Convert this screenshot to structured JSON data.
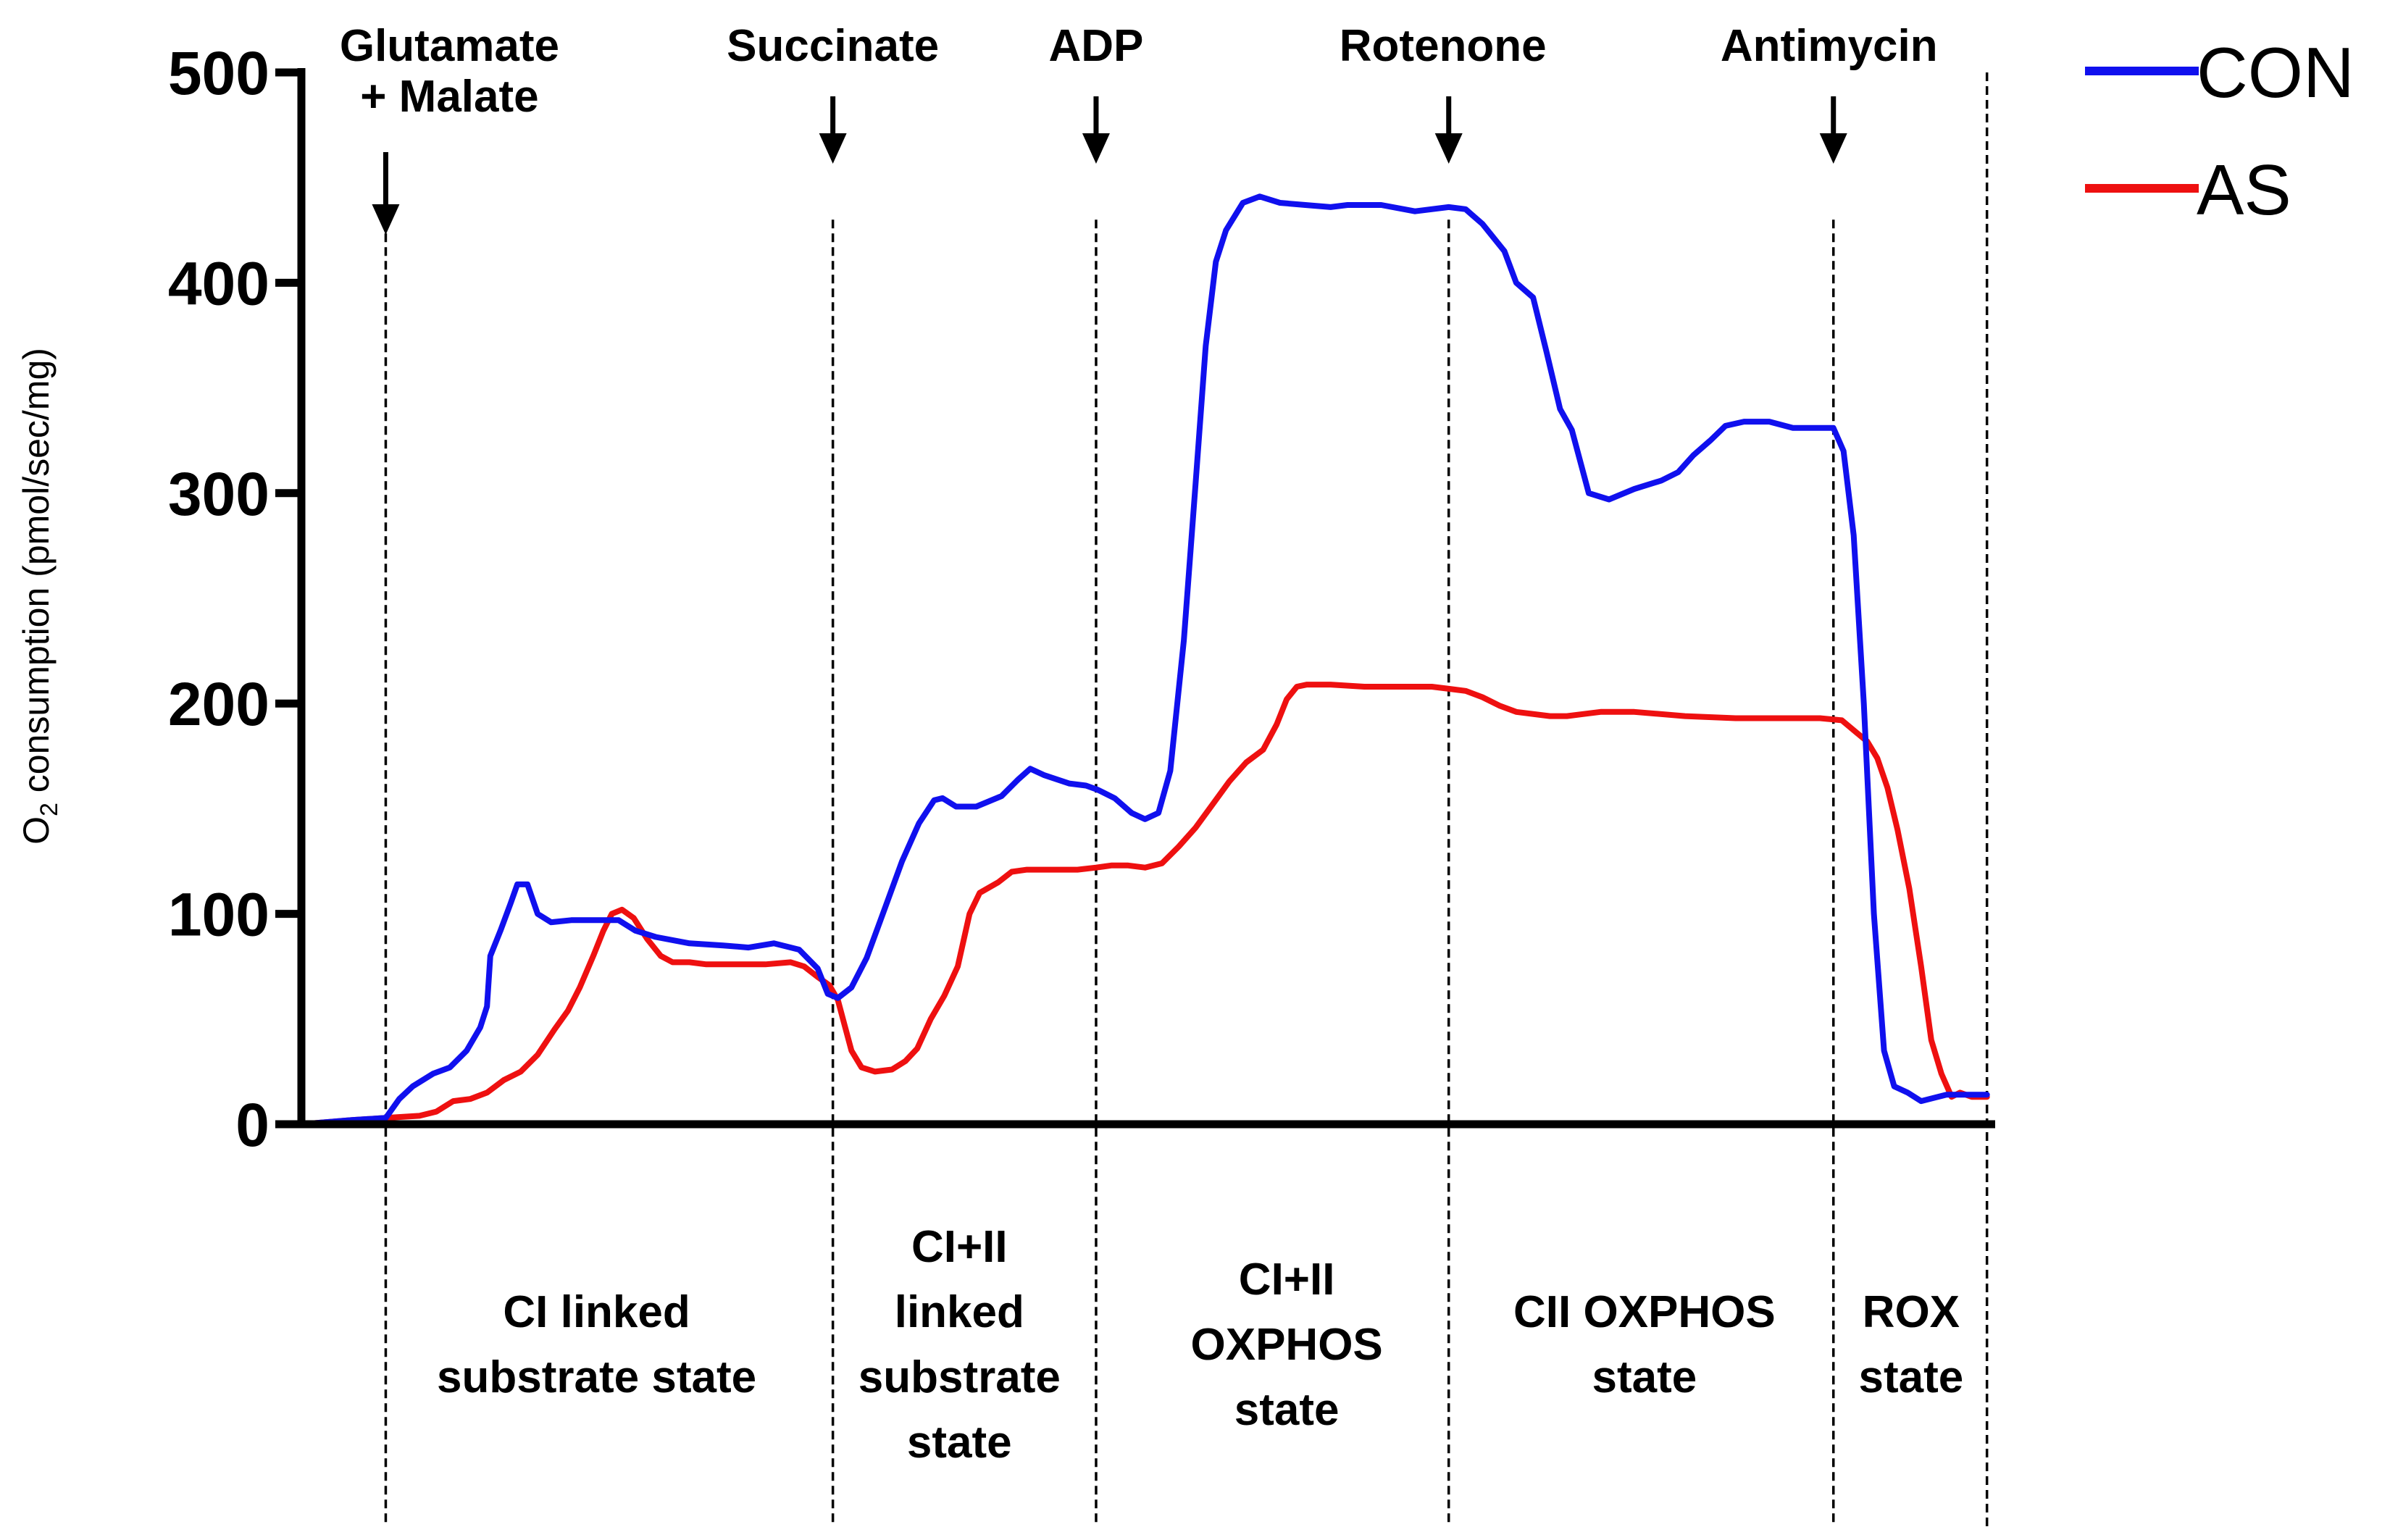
{
  "chart_data": {
    "type": "line",
    "title": "",
    "xlabel": "",
    "ylabel": {
      "prefix": "O",
      "subscript": "2",
      "rest": " consumption (pmol/sec/mg)"
    },
    "ylim": [
      0,
      500
    ],
    "xlim": [
      0,
      100
    ],
    "yticks": [
      "0",
      "100",
      "200",
      "300",
      "400",
      "500"
    ],
    "grid": false,
    "legend_position": "top-right",
    "events": [
      {
        "name": "Glutamate + Malate",
        "lines": [
          "Glutamate",
          "+ Malate"
        ],
        "x": 5.0
      },
      {
        "name": "Succinate",
        "lines": [
          "Succinate"
        ],
        "x": 31.5
      },
      {
        "name": "ADP",
        "lines": [
          "ADP"
        ],
        "x": 47.1
      },
      {
        "name": "Rotenone",
        "lines": [
          "Rotenone"
        ],
        "x": 68.0
      },
      {
        "name": "Antimycin",
        "lines": [
          "Antimycin"
        ],
        "x": 90.8
      },
      {
        "name": "end",
        "lines": [],
        "x": 99.9
      }
    ],
    "states": [
      {
        "lines": [
          "CI linked",
          "substrate state"
        ],
        "x": 17.5
      },
      {
        "lines": [
          "CI+II",
          "linked",
          "substrate",
          "state"
        ],
        "x": 39.0
      },
      {
        "lines": [
          "CI+II",
          "OXPHOS",
          "state"
        ],
        "x": 58.4
      },
      {
        "lines": [
          "CII OXPHOS",
          "state"
        ],
        "x": 79.6
      },
      {
        "lines": [
          "ROX",
          "state"
        ],
        "x": 95.4
      }
    ],
    "series": [
      {
        "name": "CON",
        "color": "#1010ee",
        "points": [
          [
            0,
            0
          ],
          [
            3,
            2
          ],
          [
            5,
            3
          ],
          [
            5.8,
            12
          ],
          [
            6.6,
            18
          ],
          [
            7.8,
            24
          ],
          [
            8.8,
            27
          ],
          [
            9.8,
            35
          ],
          [
            10.6,
            46
          ],
          [
            11,
            56
          ],
          [
            11.2,
            80
          ],
          [
            11.8,
            92
          ],
          [
            12.4,
            105
          ],
          [
            12.8,
            114
          ],
          [
            13.4,
            114
          ],
          [
            14,
            100
          ],
          [
            14.8,
            96
          ],
          [
            16,
            97
          ],
          [
            17.5,
            97
          ],
          [
            18.8,
            97
          ],
          [
            19.8,
            92
          ],
          [
            21,
            89
          ],
          [
            23,
            86
          ],
          [
            25,
            85
          ],
          [
            26.5,
            84
          ],
          [
            28,
            86
          ],
          [
            29.5,
            83
          ],
          [
            30.6,
            74
          ],
          [
            31.2,
            62
          ],
          [
            31.8,
            60
          ],
          [
            32.6,
            65
          ],
          [
            33.5,
            79
          ],
          [
            34.6,
            103
          ],
          [
            35.6,
            125
          ],
          [
            36.6,
            143
          ],
          [
            37.5,
            154
          ],
          [
            38,
            155
          ],
          [
            38.8,
            151
          ],
          [
            40,
            151
          ],
          [
            41.5,
            156
          ],
          [
            42.5,
            164
          ],
          [
            43.2,
            169
          ],
          [
            44,
            166
          ],
          [
            45.5,
            162
          ],
          [
            46.5,
            161
          ],
          [
            47.2,
            159
          ],
          [
            48.2,
            155
          ],
          [
            49.2,
            148
          ],
          [
            50,
            145
          ],
          [
            50.8,
            148
          ],
          [
            51.5,
            168
          ],
          [
            52.3,
            230
          ],
          [
            53,
            305
          ],
          [
            53.6,
            370
          ],
          [
            54.2,
            410
          ],
          [
            54.8,
            425
          ],
          [
            55.8,
            438
          ],
          [
            56.8,
            441
          ],
          [
            58,
            438
          ],
          [
            59.5,
            437
          ],
          [
            61,
            436
          ],
          [
            62,
            437
          ],
          [
            64,
            437
          ],
          [
            66,
            434
          ],
          [
            68,
            436
          ],
          [
            69,
            435
          ],
          [
            70,
            428
          ],
          [
            71.3,
            415
          ],
          [
            72,
            400
          ],
          [
            73,
            393
          ],
          [
            73.8,
            367
          ],
          [
            74.6,
            340
          ],
          [
            75.3,
            330
          ],
          [
            76.3,
            300
          ],
          [
            77.5,
            297
          ],
          [
            79,
            302
          ],
          [
            80.6,
            306
          ],
          [
            81.6,
            310
          ],
          [
            82.5,
            318
          ],
          [
            83.5,
            325
          ],
          [
            84.4,
            332
          ],
          [
            85.5,
            334
          ],
          [
            87,
            334
          ],
          [
            88.4,
            331
          ],
          [
            90.8,
            331
          ],
          [
            91.4,
            320
          ],
          [
            92,
            280
          ],
          [
            92.6,
            200
          ],
          [
            93.2,
            100
          ],
          [
            93.8,
            35
          ],
          [
            94.4,
            18
          ],
          [
            95.2,
            15
          ],
          [
            96,
            11
          ],
          [
            97.5,
            14
          ],
          [
            99.9,
            14
          ]
        ]
      },
      {
        "name": "AS",
        "color": "#ee1010",
        "points": [
          [
            0,
            0
          ],
          [
            3,
            2
          ],
          [
            5,
            3
          ],
          [
            7,
            4
          ],
          [
            8,
            6
          ],
          [
            9,
            11
          ],
          [
            10,
            12
          ],
          [
            11,
            15
          ],
          [
            12,
            21
          ],
          [
            13,
            25
          ],
          [
            14,
            33
          ],
          [
            15,
            45
          ],
          [
            15.8,
            54
          ],
          [
            16.5,
            65
          ],
          [
            17.3,
            80
          ],
          [
            17.9,
            92
          ],
          [
            18.4,
            100
          ],
          [
            19,
            102
          ],
          [
            19.7,
            98
          ],
          [
            20.5,
            88
          ],
          [
            21.3,
            80
          ],
          [
            22,
            77
          ],
          [
            23,
            77
          ],
          [
            24,
            76
          ],
          [
            25.5,
            76
          ],
          [
            27.5,
            76
          ],
          [
            29,
            77
          ],
          [
            29.8,
            75
          ],
          [
            30.6,
            70
          ],
          [
            31.3,
            66
          ],
          [
            31.8,
            59
          ],
          [
            32.2,
            47
          ],
          [
            32.6,
            35
          ],
          [
            33.2,
            27
          ],
          [
            34,
            25
          ],
          [
            35,
            26
          ],
          [
            35.8,
            30
          ],
          [
            36.5,
            36
          ],
          [
            37.3,
            50
          ],
          [
            38.1,
            61
          ],
          [
            38.9,
            75
          ],
          [
            39.6,
            100
          ],
          [
            40.2,
            110
          ],
          [
            41.3,
            115
          ],
          [
            42.1,
            120
          ],
          [
            43,
            121
          ],
          [
            44,
            121
          ],
          [
            45,
            121
          ],
          [
            46,
            121
          ],
          [
            47.1,
            122
          ],
          [
            48,
            123
          ],
          [
            49,
            123
          ],
          [
            50,
            122
          ],
          [
            51,
            124
          ],
          [
            52,
            132
          ],
          [
            53,
            141
          ],
          [
            54,
            152
          ],
          [
            55,
            163
          ],
          [
            56,
            172
          ],
          [
            57,
            178
          ],
          [
            57.8,
            190
          ],
          [
            58.4,
            202
          ],
          [
            59,
            208
          ],
          [
            59.6,
            209
          ],
          [
            61,
            209
          ],
          [
            63,
            208
          ],
          [
            65,
            208
          ],
          [
            67,
            208
          ],
          [
            68,
            207
          ],
          [
            69,
            206
          ],
          [
            70,
            203
          ],
          [
            71,
            199
          ],
          [
            72,
            196
          ],
          [
            74,
            194
          ],
          [
            75,
            194
          ],
          [
            76,
            195
          ],
          [
            77,
            196
          ],
          [
            79,
            196
          ],
          [
            82,
            194
          ],
          [
            85,
            193
          ],
          [
            88,
            193
          ],
          [
            90,
            193
          ],
          [
            91.3,
            192
          ],
          [
            92.2,
            186
          ],
          [
            92.8,
            182
          ],
          [
            93.4,
            174
          ],
          [
            94,
            160
          ],
          [
            94.6,
            140
          ],
          [
            95.3,
            112
          ],
          [
            96,
            75
          ],
          [
            96.6,
            40
          ],
          [
            97.2,
            24
          ],
          [
            97.8,
            13
          ],
          [
            98.3,
            15
          ],
          [
            99,
            13
          ],
          [
            99.9,
            13
          ]
        ]
      }
    ]
  }
}
